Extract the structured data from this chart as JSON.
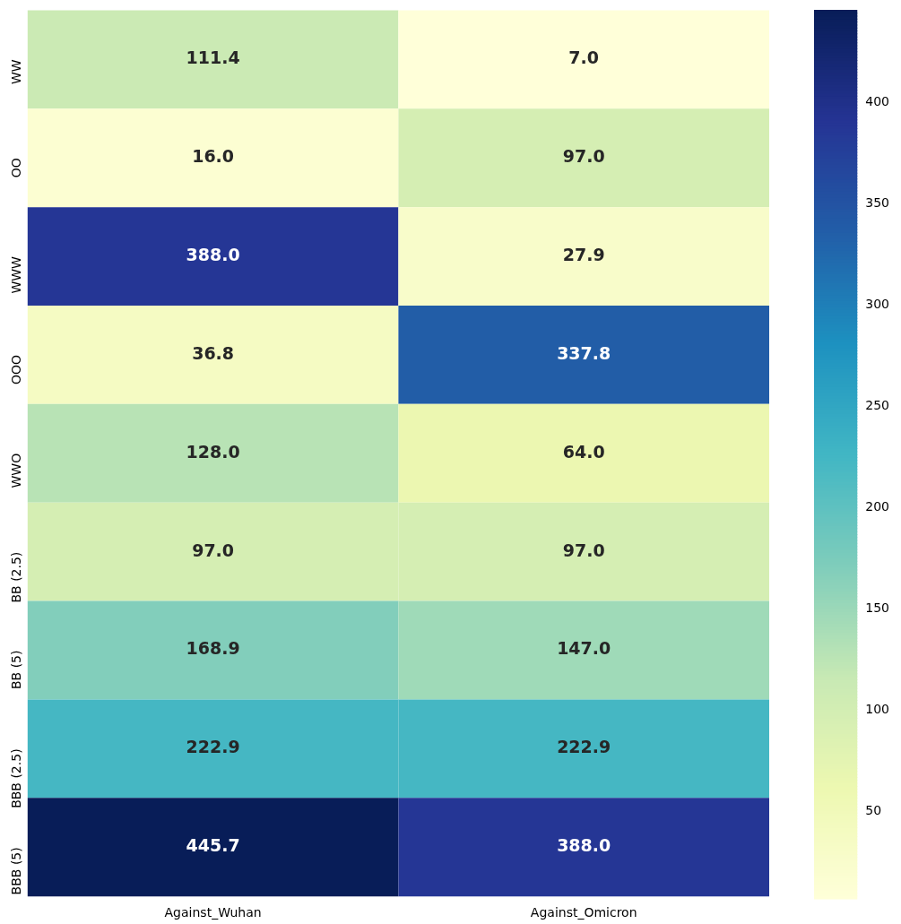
{
  "chart_data": {
    "type": "heatmap",
    "categories": [
      "Against_Wuhan",
      "Against_Omicron"
    ],
    "y_categories": [
      "WW",
      "OO",
      "WWW",
      "OOO",
      "WWO",
      "BB (2.5)",
      "BB (5)",
      "BBB (2.5)",
      "BBB (5)"
    ],
    "cells": [
      [
        111.4,
        7.0
      ],
      [
        16.0,
        97.0
      ],
      [
        388.0,
        27.9
      ],
      [
        36.8,
        337.8
      ],
      [
        128.0,
        64.0
      ],
      [
        97.0,
        97.0
      ],
      [
        168.9,
        147.0
      ],
      [
        222.9,
        222.9
      ],
      [
        445.7,
        388.0
      ]
    ],
    "cell_labels": [
      [
        "111.4",
        "7.0"
      ],
      [
        "16.0",
        "97.0"
      ],
      [
        "388.0",
        "27.9"
      ],
      [
        "36.8",
        "337.8"
      ],
      [
        "128.0",
        "64.0"
      ],
      [
        "97.0",
        "97.0"
      ],
      [
        "168.9",
        "147.0"
      ],
      [
        "222.9",
        "222.9"
      ],
      [
        "445.7",
        "388.0"
      ]
    ],
    "clim": [
      7,
      445.7
    ],
    "cticks": [
      50,
      100,
      150,
      200,
      250,
      300,
      350,
      400
    ]
  }
}
